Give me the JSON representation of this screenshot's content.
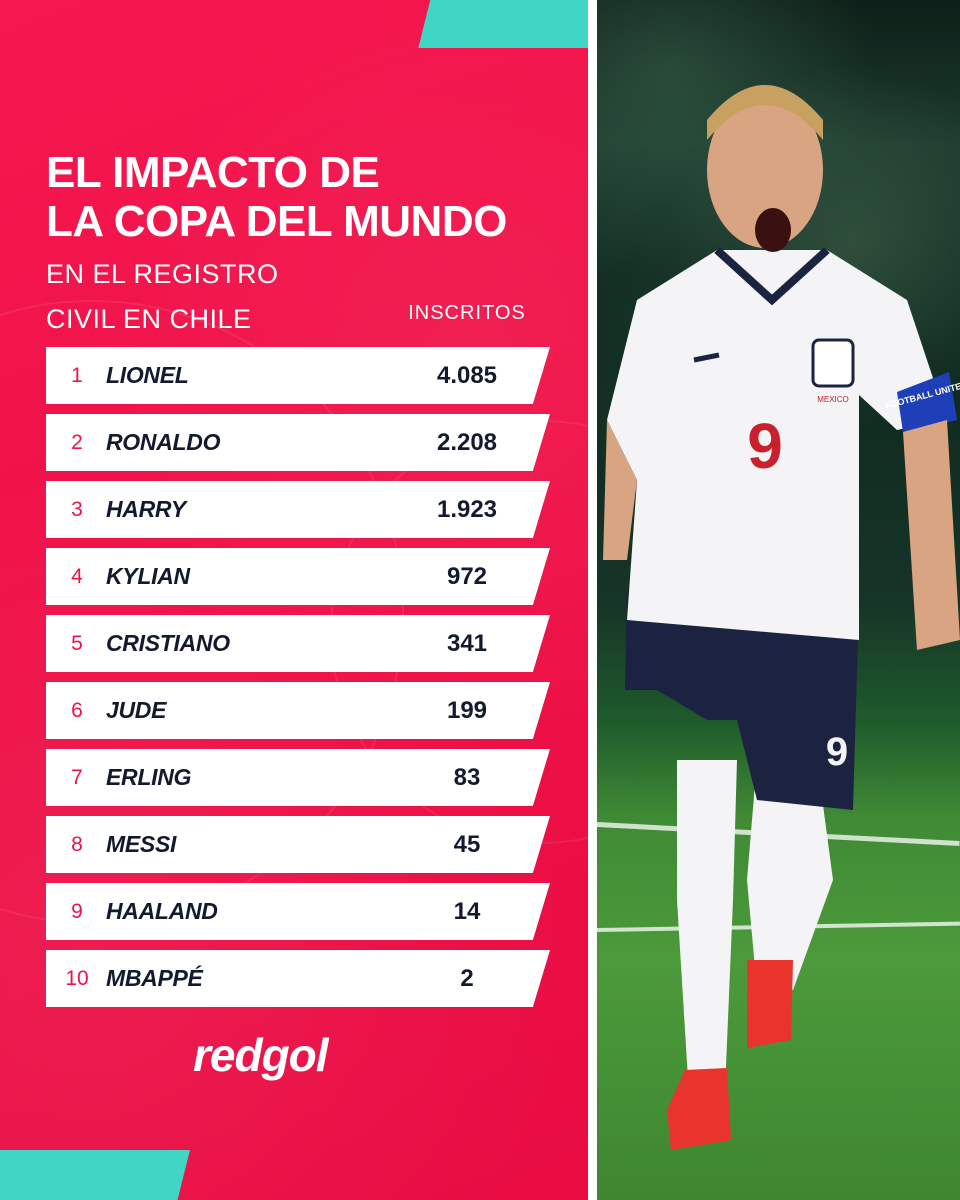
{
  "title_lines": [
    "EL IMPACTO DE",
    "LA COPA DEL MUNDO"
  ],
  "subtitle_lines": [
    "EN EL REGISTRO",
    "CIVIL EN CHILE"
  ],
  "column_header": "INSCRITOS",
  "rows": [
    {
      "rank": "1",
      "name": "LIONEL",
      "value": "4.085"
    },
    {
      "rank": "2",
      "name": "RONALDO",
      "value": "2.208"
    },
    {
      "rank": "3",
      "name": "HARRY",
      "value": "1.923"
    },
    {
      "rank": "4",
      "name": "KYLIAN",
      "value": "972"
    },
    {
      "rank": "5",
      "name": "CRISTIANO",
      "value": "341"
    },
    {
      "rank": "6",
      "name": "JUDE",
      "value": "199"
    },
    {
      "rank": "7",
      "name": "ERLING",
      "value": "83"
    },
    {
      "rank": "8",
      "name": "MESSI",
      "value": "45"
    },
    {
      "rank": "9",
      "name": "HAALAND",
      "value": "14"
    },
    {
      "rank": "10",
      "name": "MBAPPÉ",
      "value": "2"
    }
  ],
  "logo": "redgol",
  "photo": {
    "shirt_number": "9",
    "armband_text": "FOOTBALL UNITES",
    "patch_text": "MEXICO"
  },
  "colors": {
    "panel_red": "#ef1248",
    "accent_teal": "#3fd6c6",
    "row_text": "#141a2e",
    "rank_red": "#ef1248",
    "shirt_white": "#f4f4f6",
    "shorts_navy": "#1c2340"
  }
}
